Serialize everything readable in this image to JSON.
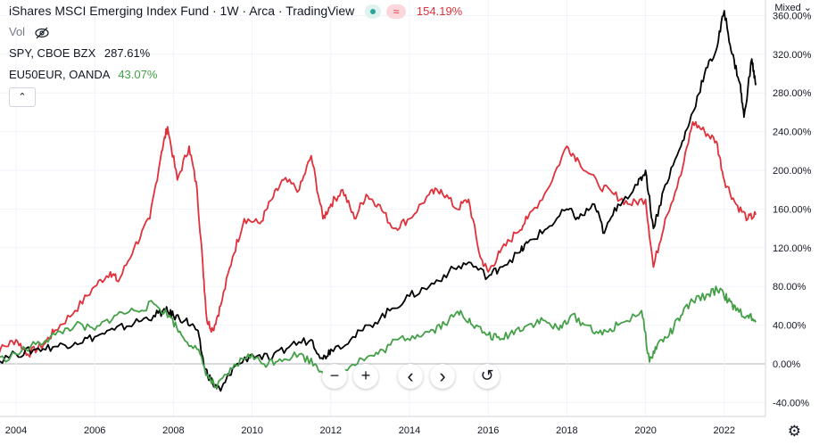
{
  "header": {
    "title": "iShares MSCI Emerging Index Fund · 1W · Arca · TradingView",
    "main_pct": "154.19%",
    "toggle_glyph": "≈",
    "vol_label": "Vol",
    "spy_label": "SPY, CBOE BZX",
    "spy_pct": "287.61%",
    "eu_label": "EU50EUR, OANDA",
    "eu_pct": "43.07%",
    "collapse_glyph": "⌃"
  },
  "scale_mode": "Mixed ⌄",
  "controls": {
    "zoom_out": "−",
    "zoom_in": "+",
    "scroll_left": "‹",
    "scroll_right": "›",
    "reset": "↺"
  },
  "settings_icon": "⚙",
  "colors": {
    "main": "#e0303a",
    "spy": "#000000",
    "eu": "#43a047",
    "grid": "#f0f3fa",
    "axis_text": "#131722"
  },
  "chart_data": {
    "type": "line",
    "title": "iShares MSCI Emerging Index Fund · 1W · Arca · TradingView",
    "xlabel": "",
    "ylabel": "",
    "x_ticks": [
      "2004",
      "2006",
      "2008",
      "2010",
      "2012",
      "2014",
      "2016",
      "2018",
      "2020",
      "2022"
    ],
    "y_ticks": [
      "-40.00%",
      "0.00%",
      "40.00%",
      "80.00%",
      "120.00%",
      "160.00%",
      "200.00%",
      "240.00%",
      "280.00%",
      "320.00%",
      "360.00%"
    ],
    "ylim": [
      -45,
      365
    ],
    "xlim": [
      2003.3,
      2022.9
    ],
    "grid": true,
    "series": [
      {
        "name": "iShares MSCI Emerging Index Fund",
        "color": "#e0303a",
        "points": [
          [
            2003.3,
            0
          ],
          [
            2003.6,
            15
          ],
          [
            2004.0,
            25
          ],
          [
            2004.3,
            10
          ],
          [
            2004.7,
            20
          ],
          [
            2005.0,
            35
          ],
          [
            2005.5,
            55
          ],
          [
            2006.0,
            80
          ],
          [
            2006.4,
            95
          ],
          [
            2006.6,
            85
          ],
          [
            2007.0,
            120
          ],
          [
            2007.4,
            150
          ],
          [
            2007.7,
            220
          ],
          [
            2007.85,
            245
          ],
          [
            2008.1,
            190
          ],
          [
            2008.4,
            225
          ],
          [
            2008.6,
            180
          ],
          [
            2008.75,
            100
          ],
          [
            2008.85,
            45
          ],
          [
            2009.0,
            35
          ],
          [
            2009.2,
            60
          ],
          [
            2009.5,
            110
          ],
          [
            2009.8,
            150
          ],
          [
            2010.2,
            145
          ],
          [
            2010.5,
            170
          ],
          [
            2010.8,
            190
          ],
          [
            2011.2,
            180
          ],
          [
            2011.5,
            215
          ],
          [
            2011.8,
            150
          ],
          [
            2012.0,
            165
          ],
          [
            2012.3,
            180
          ],
          [
            2012.6,
            150
          ],
          [
            2012.9,
            175
          ],
          [
            2013.2,
            165
          ],
          [
            2013.6,
            140
          ],
          [
            2014.0,
            150
          ],
          [
            2014.5,
            175
          ],
          [
            2014.8,
            180
          ],
          [
            2015.2,
            160
          ],
          [
            2015.5,
            170
          ],
          [
            2015.8,
            110
          ],
          [
            2016.0,
            95
          ],
          [
            2016.3,
            115
          ],
          [
            2016.7,
            135
          ],
          [
            2017.0,
            150
          ],
          [
            2017.5,
            180
          ],
          [
            2018.0,
            225
          ],
          [
            2018.3,
            210
          ],
          [
            2018.8,
            185
          ],
          [
            2019.2,
            175
          ],
          [
            2019.6,
            165
          ],
          [
            2020.0,
            170
          ],
          [
            2020.2,
            100
          ],
          [
            2020.5,
            150
          ],
          [
            2020.9,
            195
          ],
          [
            2021.2,
            250
          ],
          [
            2021.5,
            240
          ],
          [
            2021.8,
            230
          ],
          [
            2022.0,
            190
          ],
          [
            2022.3,
            165
          ],
          [
            2022.6,
            150
          ],
          [
            2022.8,
            154
          ]
        ]
      },
      {
        "name": "SPY, CBOE BZX",
        "color": "#000000",
        "points": [
          [
            2003.3,
            0
          ],
          [
            2004.0,
            10
          ],
          [
            2004.5,
            15
          ],
          [
            2005.0,
            18
          ],
          [
            2005.5,
            22
          ],
          [
            2006.0,
            28
          ],
          [
            2006.5,
            35
          ],
          [
            2007.0,
            42
          ],
          [
            2007.5,
            50
          ],
          [
            2007.8,
            55
          ],
          [
            2008.0,
            50
          ],
          [
            2008.3,
            45
          ],
          [
            2008.6,
            35
          ],
          [
            2008.8,
            -5
          ],
          [
            2009.0,
            -20
          ],
          [
            2009.2,
            -28
          ],
          [
            2009.5,
            -5
          ],
          [
            2010.0,
            10
          ],
          [
            2010.5,
            5
          ],
          [
            2011.0,
            20
          ],
          [
            2011.5,
            25
          ],
          [
            2011.8,
            5
          ],
          [
            2012.0,
            15
          ],
          [
            2012.5,
            25
          ],
          [
            2013.0,
            40
          ],
          [
            2013.5,
            55
          ],
          [
            2014.0,
            70
          ],
          [
            2014.5,
            80
          ],
          [
            2015.0,
            95
          ],
          [
            2015.5,
            105
          ],
          [
            2016.0,
            90
          ],
          [
            2016.3,
            100
          ],
          [
            2016.8,
            115
          ],
          [
            2017.0,
            125
          ],
          [
            2017.5,
            140
          ],
          [
            2018.0,
            160
          ],
          [
            2018.3,
            150
          ],
          [
            2018.7,
            165
          ],
          [
            2018.95,
            135
          ],
          [
            2019.3,
            165
          ],
          [
            2019.8,
            185
          ],
          [
            2020.0,
            200
          ],
          [
            2020.2,
            140
          ],
          [
            2020.5,
            185
          ],
          [
            2020.9,
            225
          ],
          [
            2021.2,
            260
          ],
          [
            2021.5,
            300
          ],
          [
            2021.8,
            325
          ],
          [
            2022.0,
            365
          ],
          [
            2022.2,
            320
          ],
          [
            2022.4,
            290
          ],
          [
            2022.5,
            255
          ],
          [
            2022.7,
            315
          ],
          [
            2022.8,
            288
          ]
        ]
      },
      {
        "name": "EU50EUR, OANDA",
        "color": "#43a047",
        "points": [
          [
            2003.3,
            0
          ],
          [
            2004.0,
            10
          ],
          [
            2004.5,
            20
          ],
          [
            2005.0,
            30
          ],
          [
            2005.5,
            40
          ],
          [
            2006.0,
            35
          ],
          [
            2006.5,
            50
          ],
          [
            2007.0,
            55
          ],
          [
            2007.5,
            62
          ],
          [
            2007.9,
            50
          ],
          [
            2008.2,
            30
          ],
          [
            2008.6,
            15
          ],
          [
            2008.9,
            -15
          ],
          [
            2009.1,
            -25
          ],
          [
            2009.5,
            -5
          ],
          [
            2009.9,
            10
          ],
          [
            2010.3,
            0
          ],
          [
            2010.7,
            5
          ],
          [
            2011.2,
            10
          ],
          [
            2011.6,
            0
          ],
          [
            2011.9,
            -12
          ],
          [
            2012.3,
            -5
          ],
          [
            2012.8,
            5
          ],
          [
            2013.2,
            10
          ],
          [
            2013.7,
            25
          ],
          [
            2014.2,
            30
          ],
          [
            2014.6,
            35
          ],
          [
            2015.0,
            45
          ],
          [
            2015.3,
            55
          ],
          [
            2015.6,
            40
          ],
          [
            2016.0,
            30
          ],
          [
            2016.3,
            25
          ],
          [
            2016.7,
            35
          ],
          [
            2017.0,
            40
          ],
          [
            2017.4,
            45
          ],
          [
            2017.8,
            35
          ],
          [
            2018.1,
            50
          ],
          [
            2018.5,
            40
          ],
          [
            2018.9,
            30
          ],
          [
            2019.3,
            40
          ],
          [
            2019.9,
            55
          ],
          [
            2020.1,
            2
          ],
          [
            2020.3,
            20
          ],
          [
            2020.6,
            30
          ],
          [
            2020.9,
            50
          ],
          [
            2021.2,
            65
          ],
          [
            2021.6,
            72
          ],
          [
            2021.9,
            78
          ],
          [
            2022.1,
            65
          ],
          [
            2022.3,
            55
          ],
          [
            2022.6,
            50
          ],
          [
            2022.8,
            43
          ]
        ]
      }
    ]
  }
}
